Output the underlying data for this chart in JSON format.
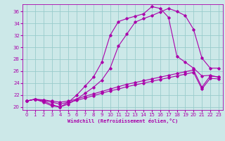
{
  "xlabel": "Windchill (Refroidissement éolien,°C)",
  "bg_color": "#cce8e8",
  "grid_color": "#99cccc",
  "line_color": "#aa00aa",
  "xlim": [
    -0.5,
    23.5
  ],
  "ylim": [
    19.5,
    37.2
  ],
  "xticks": [
    0,
    1,
    2,
    3,
    4,
    5,
    6,
    7,
    8,
    9,
    10,
    11,
    12,
    13,
    14,
    15,
    16,
    17,
    18,
    19,
    20,
    21,
    22,
    23
  ],
  "yticks": [
    20,
    22,
    24,
    26,
    28,
    30,
    32,
    34,
    36
  ],
  "line1_x": [
    0,
    1,
    2,
    3,
    4,
    5,
    6,
    7,
    8,
    9,
    10,
    11,
    12,
    13,
    14,
    15,
    16,
    17,
    18,
    19,
    20,
    21,
    22,
    23
  ],
  "line1_y": [
    21.0,
    21.3,
    21.0,
    20.4,
    20.0,
    20.5,
    21.3,
    22.3,
    23.3,
    24.5,
    26.5,
    30.2,
    32.2,
    34.2,
    34.8,
    35.3,
    35.9,
    36.5,
    36.0,
    35.3,
    33.0,
    28.2,
    26.5,
    26.5
  ],
  "line2_x": [
    0,
    1,
    2,
    3,
    4,
    5,
    6,
    7,
    8,
    9,
    10,
    11,
    12,
    13,
    14,
    15,
    16,
    17,
    18,
    19,
    20,
    21,
    22,
    23
  ],
  "line2_y": [
    21.0,
    21.3,
    20.8,
    20.2,
    20.0,
    20.8,
    22.0,
    23.5,
    25.0,
    27.5,
    32.0,
    34.3,
    34.8,
    35.2,
    35.6,
    36.8,
    36.5,
    35.0,
    28.5,
    27.5,
    26.5,
    25.2,
    25.3,
    25.0
  ],
  "line3_x": [
    0,
    1,
    2,
    3,
    4,
    5,
    6,
    7,
    8,
    9,
    10,
    11,
    12,
    13,
    14,
    15,
    16,
    17,
    18,
    19,
    20,
    21,
    22,
    23
  ],
  "line3_y": [
    21.0,
    21.3,
    21.2,
    21.0,
    20.8,
    21.0,
    21.3,
    21.8,
    22.2,
    22.6,
    23.0,
    23.4,
    23.8,
    24.1,
    24.4,
    24.7,
    25.0,
    25.3,
    25.6,
    25.9,
    26.2,
    23.3,
    25.2,
    25.0
  ],
  "line4_x": [
    0,
    1,
    2,
    3,
    4,
    5,
    6,
    7,
    8,
    9,
    10,
    11,
    12,
    13,
    14,
    15,
    16,
    17,
    18,
    19,
    20,
    21,
    22,
    23
  ],
  "line4_y": [
    21.0,
    21.3,
    21.1,
    20.8,
    20.5,
    20.8,
    21.1,
    21.5,
    21.9,
    22.3,
    22.7,
    23.0,
    23.4,
    23.7,
    24.0,
    24.3,
    24.6,
    24.9,
    25.2,
    25.5,
    25.8,
    23.0,
    24.8,
    24.7
  ]
}
